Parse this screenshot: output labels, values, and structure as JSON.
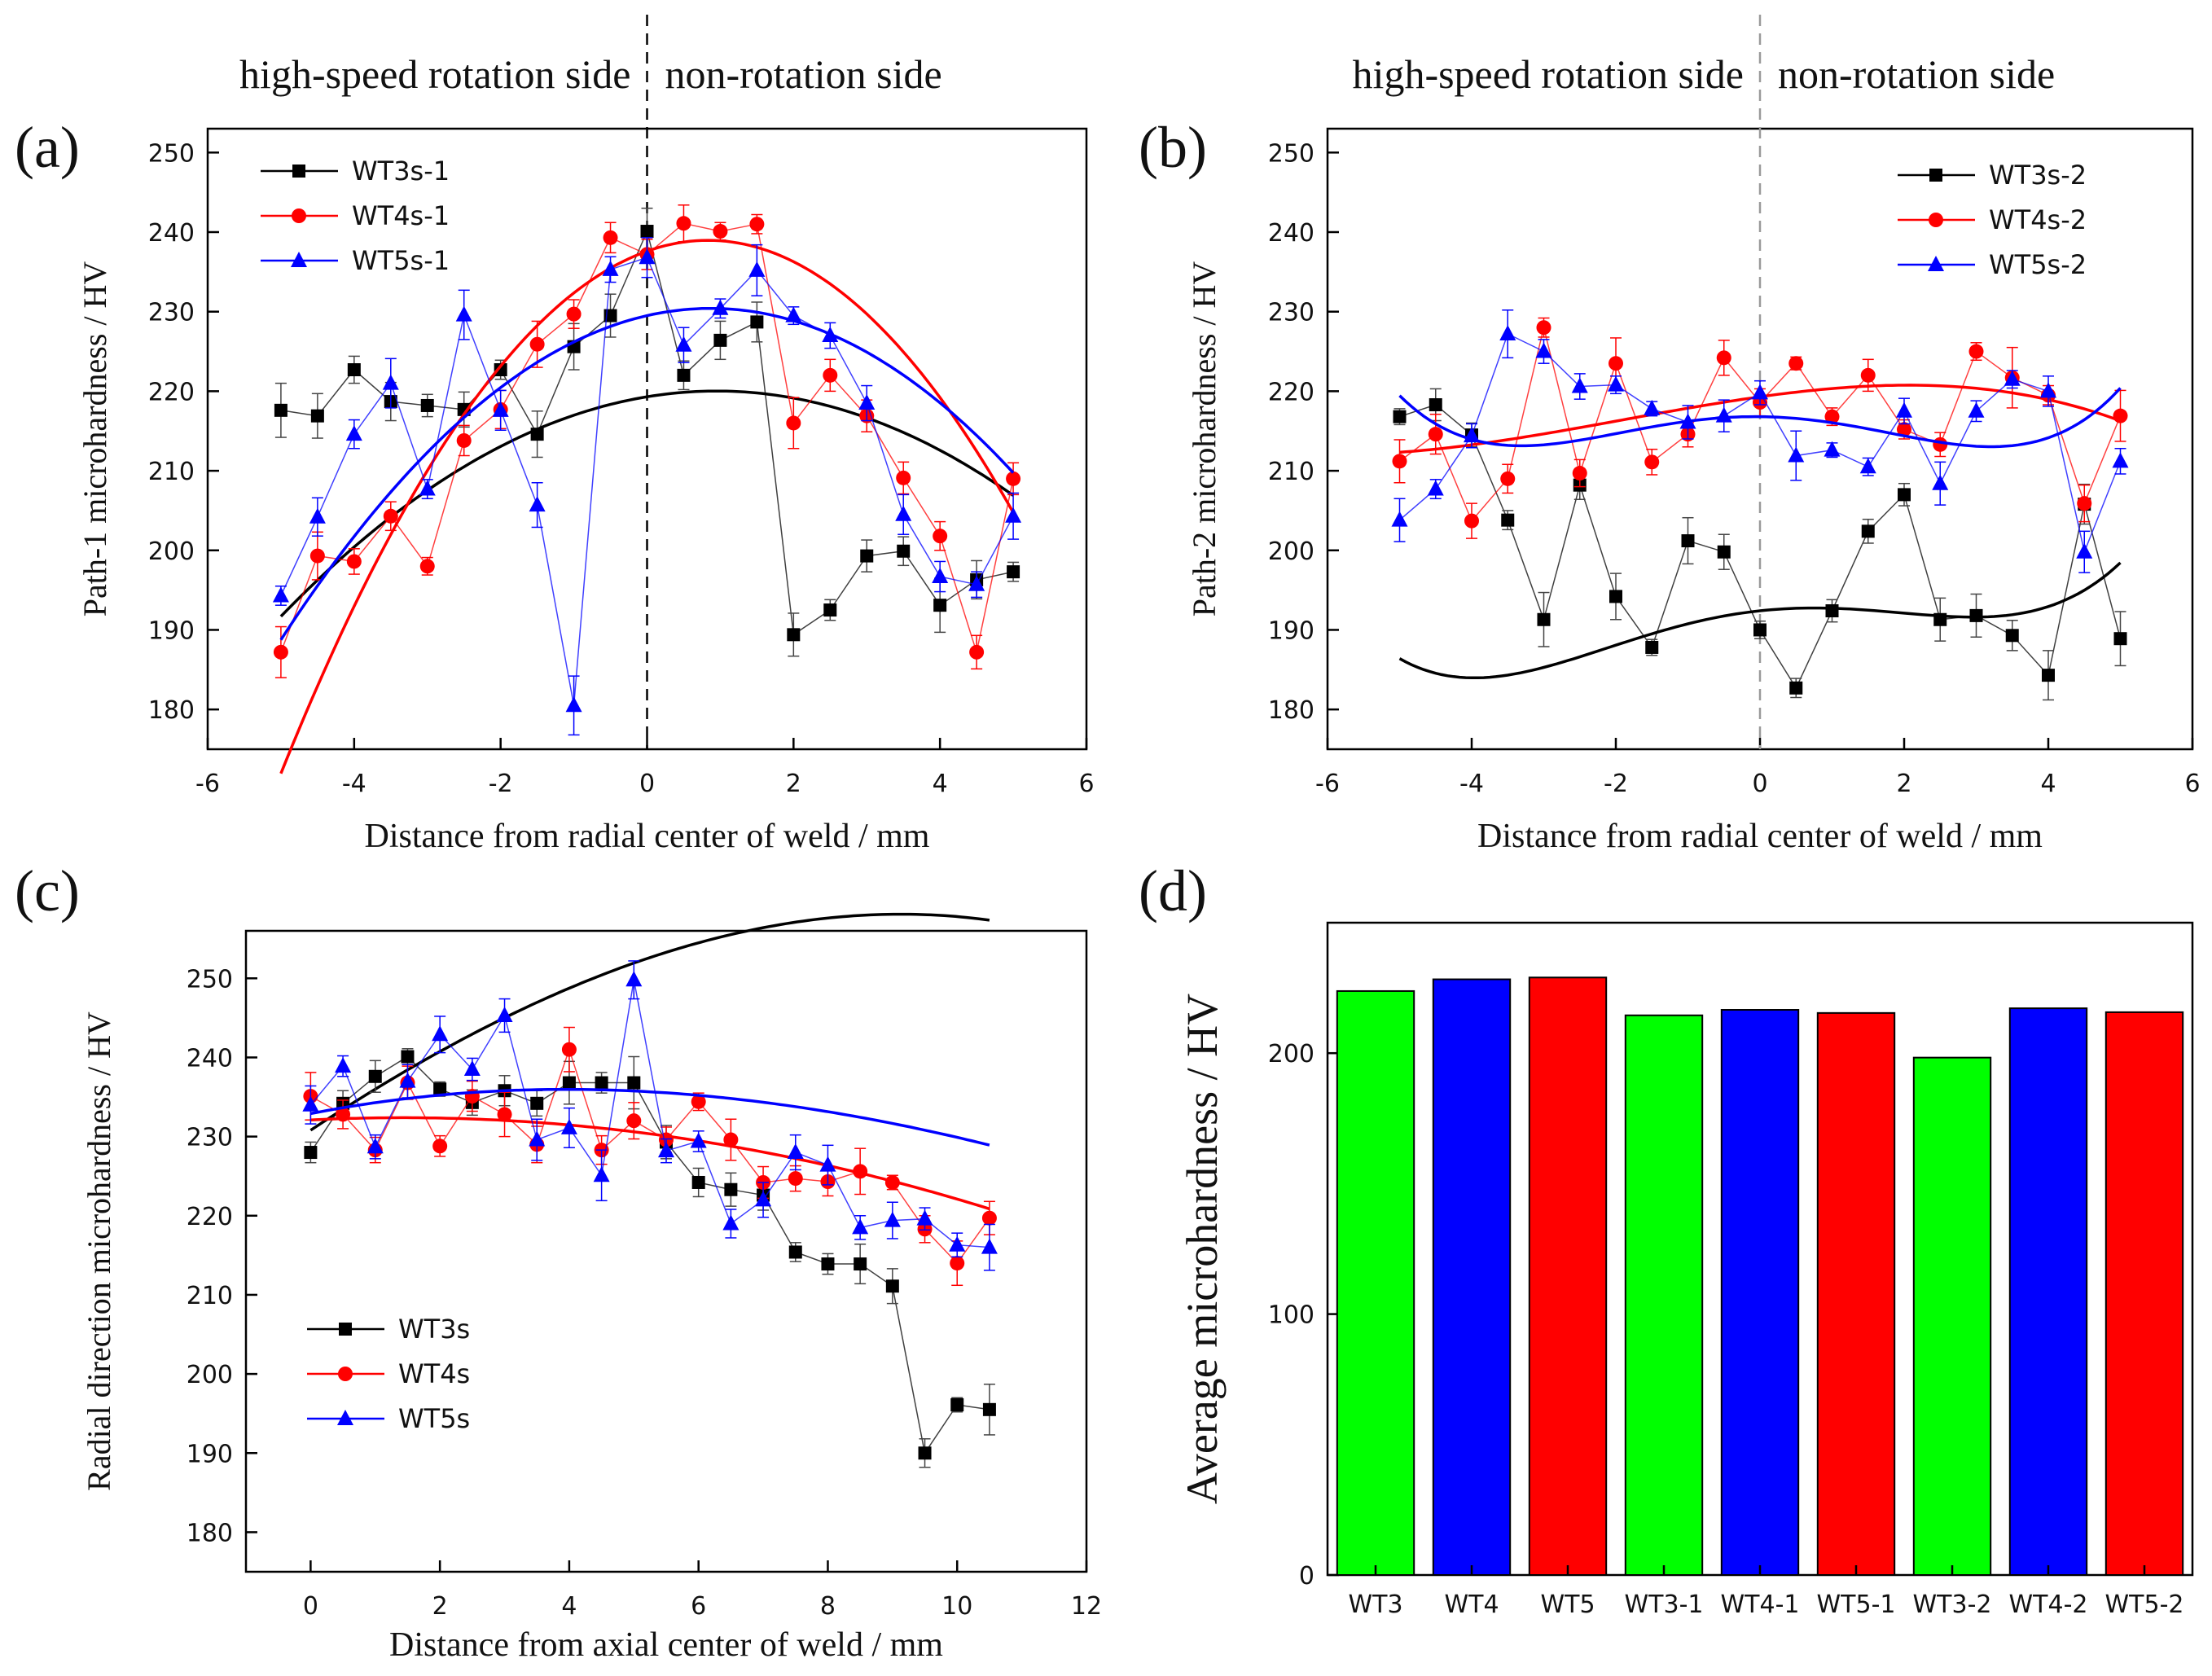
{
  "chart_data": [
    {
      "id": "a",
      "panel_label": "(a)",
      "type": "line",
      "xlabel": "Distance from radial center of weld / mm",
      "ylabel": "Path-1 microhardness / HV",
      "xlim": [
        -6,
        6
      ],
      "ylim": [
        175,
        253
      ],
      "xticks": [
        -6,
        -4,
        -2,
        0,
        2,
        4,
        6
      ],
      "xtick_labels": [
        "-6",
        "-4",
        "-2",
        "0",
        "2",
        "4",
        "6"
      ],
      "yticks": [
        180,
        190,
        200,
        210,
        220,
        230,
        240,
        250
      ],
      "ytick_labels": [
        "180",
        "190",
        "200",
        "210",
        "220",
        "230",
        "240",
        "250"
      ],
      "divider_x": 0,
      "divider_color": "#000000",
      "side_labels": {
        "left": "high-speed rotation side",
        "right": "non-rotation side"
      },
      "legend_position": "top-left",
      "x": [
        -5,
        -4.5,
        -4,
        -3.5,
        -3,
        -2.5,
        -2,
        -1.5,
        -1,
        -0.5,
        0,
        0.5,
        1,
        1.5,
        2,
        2.5,
        3,
        3.5,
        4,
        4.5,
        5
      ],
      "series": [
        {
          "name": "WT3s-1",
          "color": "#000000",
          "marker": "square",
          "values": [
            217.6,
            216.9,
            222.7,
            218.7,
            218.2,
            217.7,
            222.7,
            214.6,
            225.6,
            229.5,
            240.1,
            222.0,
            226.4,
            228.7,
            189.4,
            192.5,
            199.3,
            199.9,
            193.1,
            196.3,
            197.3
          ],
          "errors": [
            3.4,
            2.8,
            1.7,
            2.4,
            1.4,
            2.2,
            1.2,
            2.9,
            2.9,
            2.7,
            2.9,
            1.8,
            2.4,
            2.5,
            2.7,
            1.3,
            2.0,
            1.8,
            3.4,
            2.4,
            1.2
          ],
          "fit": [
            -0.8,
            1.52,
            219.3
          ]
        },
        {
          "name": "WT4s-1",
          "color": "#ff0000",
          "marker": "circle",
          "values": [
            187.2,
            199.3,
            198.6,
            204.3,
            198.0,
            213.8,
            217.7,
            225.9,
            229.7,
            239.3,
            237.2,
            241.1,
            240.1,
            241.0,
            216.0,
            222.0,
            216.9,
            209.1,
            201.8,
            187.2,
            209.0
          ],
          "errors": [
            3.2,
            3.0,
            1.6,
            1.8,
            1.1,
            1.9,
            2.4,
            2.9,
            1.8,
            1.9,
            1.9,
            2.3,
            1.1,
            1.2,
            3.2,
            2.0,
            2.0,
            2.0,
            1.8,
            2.1,
            2.0
          ],
          "fit": [
            -1.97,
            3.28,
            237.6
          ]
        },
        {
          "name": "WT5s-1",
          "color": "#0000ff",
          "marker": "triangle",
          "values": [
            194.3,
            204.2,
            214.6,
            221.0,
            207.7,
            229.6,
            217.6,
            205.7,
            180.5,
            235.3,
            236.8,
            225.8,
            230.4,
            235.2,
            229.5,
            227.0,
            218.5,
            204.5,
            196.7,
            195.7,
            204.3
          ],
          "errors": [
            1.2,
            2.4,
            1.8,
            3.1,
            1.2,
            3.1,
            2.5,
            2.8,
            3.7,
            1.6,
            2.5,
            2.2,
            1.2,
            3.2,
            1.1,
            1.6,
            2.2,
            2.5,
            1.9,
            1.6,
            2.9
          ],
          "fit": [
            -1.21,
            2.1,
            229.5
          ]
        }
      ]
    },
    {
      "id": "b",
      "panel_label": "(b)",
      "type": "line",
      "xlabel": "Distance from radial center of weld / mm",
      "ylabel": "Path-2 microhardness / HV",
      "xlim": [
        -6,
        6
      ],
      "ylim": [
        175,
        253
      ],
      "xticks": [
        -6,
        -4,
        -2,
        0,
        2,
        4,
        6
      ],
      "xtick_labels": [
        "-6",
        "-4",
        "-2",
        "0",
        "2",
        "4",
        "6"
      ],
      "yticks": [
        180,
        190,
        200,
        210,
        220,
        230,
        240,
        250
      ],
      "ytick_labels": [
        "180",
        "190",
        "200",
        "210",
        "220",
        "230",
        "240",
        "250"
      ],
      "divider_x": 0,
      "divider_color": "#999999",
      "side_labels": {
        "left": "high-speed rotation side",
        "right": "non-rotation side"
      },
      "legend_position": "top-right",
      "x": [
        -5,
        -4.5,
        -4,
        -3.5,
        -3,
        -2.5,
        -2,
        -1.5,
        -1,
        -0.5,
        0,
        0.5,
        1,
        1.5,
        2,
        2.5,
        3,
        3.5,
        4,
        4.5,
        5
      ],
      "series": [
        {
          "name": "WT3s-2",
          "color": "#000000",
          "marker": "square",
          "values": [
            216.8,
            218.3,
            214.5,
            203.8,
            191.3,
            208.2,
            194.2,
            187.8,
            201.2,
            199.8,
            190.0,
            182.7,
            192.4,
            202.4,
            207.0,
            191.3,
            191.8,
            189.3,
            184.3,
            205.8,
            188.9
          ],
          "errors": [
            1.0,
            2.0,
            1.5,
            1.2,
            3.4,
            1.8,
            2.9,
            1.0,
            2.9,
            2.2,
            1.1,
            1.2,
            1.4,
            1.5,
            1.4,
            2.7,
            2.7,
            1.9,
            3.1,
            2.5,
            3.4
          ],
          "fit": [
            0.0275,
            0.0094,
            -0.6867,
            0.9695,
            192.4
          ]
        },
        {
          "name": "WT4s-2",
          "color": "#ff0000",
          "marker": "circle",
          "values": [
            211.2,
            214.6,
            203.7,
            209.0,
            228.0,
            209.7,
            223.5,
            211.1,
            214.6,
            224.2,
            218.6,
            223.5,
            216.8,
            222.0,
            215.2,
            213.3,
            225.0,
            221.7,
            219.5,
            205.9,
            216.9
          ],
          "errors": [
            2.7,
            2.5,
            2.2,
            1.8,
            1.2,
            1.7,
            3.2,
            1.6,
            1.6,
            2.2,
            1.7,
            0.8,
            1.1,
            2.0,
            1.2,
            1.5,
            1.1,
            3.8,
            1.2,
            2.3,
            3.2
          ],
          "fit": [
            -0.035,
            -0.2,
            1.27,
            219.3
          ]
        },
        {
          "name": "WT5s-2",
          "color": "#0000ff",
          "marker": "triangle",
          "values": [
            203.8,
            207.7,
            214.4,
            227.2,
            225.0,
            220.6,
            220.8,
            217.8,
            216.1,
            216.9,
            219.8,
            211.9,
            212.6,
            210.5,
            217.5,
            208.4,
            217.5,
            221.5,
            220.0,
            199.8,
            211.2
          ],
          "errors": [
            2.7,
            1.2,
            1.5,
            3.0,
            1.5,
            1.6,
            1.1,
            0.9,
            2.1,
            2.0,
            1.5,
            3.1,
            0.9,
            1.1,
            1.6,
            2.7,
            1.3,
            1.1,
            1.9,
            2.6,
            1.6
          ],
          "fit": [
            0.033,
            0.0078,
            -0.7,
            -0.1,
            216.8
          ]
        }
      ]
    },
    {
      "id": "c",
      "panel_label": "(c)",
      "type": "line",
      "xlabel": "Distance from axial center of weld / mm",
      "ylabel": "Radial direction microhardness / HV",
      "xlim": [
        -1,
        12
      ],
      "ylim": [
        175,
        256
      ],
      "xticks": [
        0,
        2,
        4,
        6,
        8,
        10,
        12
      ],
      "xtick_labels": [
        "0",
        "2",
        "4",
        "6",
        "8",
        "10",
        "12"
      ],
      "yticks": [
        180,
        190,
        200,
        210,
        220,
        230,
        240,
        250
      ],
      "ytick_labels": [
        "180",
        "190",
        "200",
        "210",
        "220",
        "230",
        "240",
        "250"
      ],
      "legend_position": "bottom-left",
      "x": [
        0,
        0.5,
        1,
        1.5,
        2,
        2.5,
        3,
        3.5,
        4,
        4.5,
        5,
        5.5,
        6,
        6.5,
        7,
        7.5,
        8,
        8.5,
        9,
        9.5,
        10,
        10.5
      ],
      "series": [
        {
          "name": "WT3s",
          "color": "#000000",
          "marker": "square",
          "values": [
            228.0,
            234.2,
            237.6,
            240.1,
            236.0,
            234.3,
            235.8,
            234.2,
            236.8,
            236.8,
            236.8,
            229.3,
            224.2,
            223.3,
            222.6,
            215.4,
            213.9,
            213.9,
            211.1,
            190.0,
            196.1,
            195.5
          ],
          "errors": [
            1.3,
            1.6,
            2.0,
            1.0,
            0.9,
            1.6,
            1.9,
            1.6,
            2.7,
            1.3,
            3.3,
            2.1,
            1.8,
            2.1,
            1.9,
            1.2,
            1.3,
            2.5,
            2.2,
            1.8,
            0.9,
            3.2
          ],
          "fit": [
            -0.007,
            -0.2,
            5.4,
            230.8
          ]
        },
        {
          "name": "WT4s",
          "color": "#ff0000",
          "marker": "circle",
          "values": [
            235.1,
            232.8,
            228.3,
            236.8,
            228.8,
            235.1,
            232.8,
            229.0,
            241.0,
            228.3,
            232.0,
            229.6,
            234.4,
            229.6,
            224.2,
            224.7,
            224.3,
            225.6,
            224.2,
            218.3,
            214.0,
            219.7
          ],
          "errors": [
            3.0,
            1.8,
            1.6,
            2.1,
            1.3,
            1.9,
            2.8,
            2.3,
            2.8,
            1.8,
            2.3,
            1.6,
            1.1,
            2.6,
            2.0,
            1.6,
            1.8,
            2.9,
            0.9,
            1.7,
            2.8,
            2.1
          ],
          "fit": [
            -0.14,
            0.4,
            232.1
          ]
        },
        {
          "name": "WT5s",
          "color": "#0000ff",
          "marker": "triangle",
          "values": [
            234.0,
            238.9,
            228.7,
            237.0,
            242.9,
            238.5,
            245.3,
            229.6,
            231.1,
            225.1,
            249.8,
            228.2,
            229.4,
            219.0,
            222.0,
            228.0,
            226.4,
            218.5,
            219.4,
            219.6,
            216.3,
            216.0
          ],
          "errors": [
            2.4,
            1.3,
            1.5,
            2.1,
            2.3,
            1.4,
            2.1,
            2.6,
            2.5,
            3.2,
            2.4,
            1.5,
            1.3,
            1.8,
            2.2,
            2.2,
            2.5,
            1.5,
            2.3,
            1.4,
            1.5,
            2.9
          ],
          "fit": [
            0.0031,
            -0.221,
            1.6,
            232.9
          ]
        }
      ]
    },
    {
      "id": "d",
      "panel_label": "(d)",
      "type": "bar",
      "xlabel": "",
      "ylabel": "Average microhardness / HV",
      "ylim": [
        0,
        250
      ],
      "yticks": [
        0,
        100,
        200
      ],
      "ytick_labels": [
        "0",
        "100",
        "200"
      ],
      "categories": [
        "WT3",
        "WT4",
        "WT5",
        "WT3-1",
        "WT4-1",
        "WT5-1",
        "WT3-2",
        "WT4-2",
        "WT5-2"
      ],
      "values": [
        223.8,
        228.3,
        229.0,
        214.5,
        216.6,
        215.4,
        198.3,
        217.2,
        215.7
      ],
      "colors": [
        "#00ff00",
        "#0000ff",
        "#ff0000",
        "#00ff00",
        "#0000ff",
        "#ff0000",
        "#00ff00",
        "#0000ff",
        "#ff0000"
      ]
    }
  ]
}
